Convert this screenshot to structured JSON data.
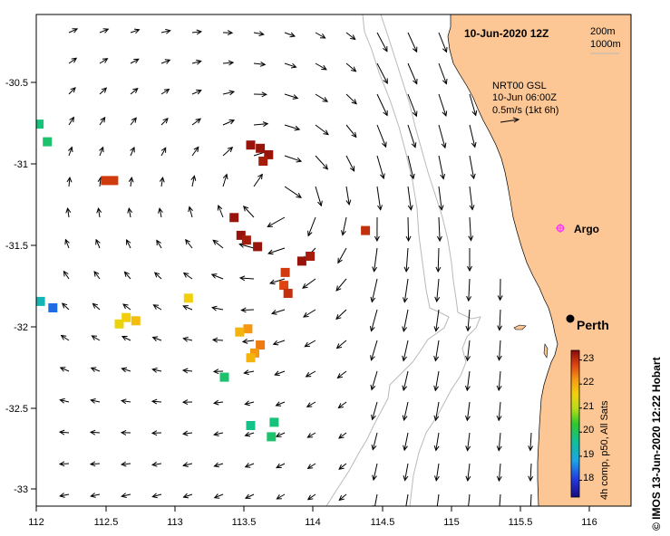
{
  "title": "10-Jun-2020 12Z",
  "depth_legend": [
    "200m",
    "1000m"
  ],
  "current_info": [
    "NRT00 GSL",
    "10-Jun 06:00Z",
    "0.5m/s (1kt 6h)"
  ],
  "places": {
    "argo": "Argo",
    "perth": "Perth"
  },
  "colorbar": {
    "label": "4h comp, p50, All Sats",
    "ticks": [
      "18",
      "19",
      "20",
      "21",
      "22",
      "23"
    ],
    "vmin": 17.3,
    "vmax": 23.4
  },
  "credit": "© IMOS 13-Jun-2020 12:22 Hobart",
  "axes": {
    "x_ticks": [
      "112",
      "112.5",
      "113",
      "113.5",
      "114",
      "114.5",
      "115",
      "115.5",
      "116"
    ],
    "y_ticks": [
      "-30.5",
      "-31",
      "-31.5",
      "-32",
      "-32.5",
      "-33"
    ],
    "lon_range": [
      112,
      116.3
    ],
    "lat_range": [
      -33.1,
      -30.05
    ]
  },
  "colors": {
    "land": "#fcc795",
    "isobath": "#b9b9b9",
    "argo": "#ff33ff"
  },
  "sst_patches": [
    {
      "lon": 112.02,
      "lat": -30.73,
      "t": 19.8
    },
    {
      "lon": 112.08,
      "lat": -30.84,
      "t": 19.9
    },
    {
      "lon": 112.03,
      "lat": -31.83,
      "t": 19.3
    },
    {
      "lon": 112.12,
      "lat": -31.87,
      "t": 18.4
    },
    {
      "lon": 112.5,
      "lat": -31.08,
      "t": 22.9
    },
    {
      "lon": 112.56,
      "lat": -31.08,
      "t": 22.9
    },
    {
      "lon": 112.65,
      "lat": -31.93,
      "t": 21.6
    },
    {
      "lon": 112.72,
      "lat": -31.95,
      "t": 21.8
    },
    {
      "lon": 112.6,
      "lat": -31.97,
      "t": 21.5
    },
    {
      "lon": 113.1,
      "lat": -31.81,
      "t": 21.6
    },
    {
      "lon": 113.53,
      "lat": -32.0,
      "t": 22.2
    },
    {
      "lon": 113.47,
      "lat": -32.02,
      "t": 21.9
    },
    {
      "lon": 113.62,
      "lat": -32.1,
      "t": 22.4
    },
    {
      "lon": 113.58,
      "lat": -32.15,
      "t": 22.2
    },
    {
      "lon": 113.55,
      "lat": -32.18,
      "t": 21.9
    },
    {
      "lon": 113.36,
      "lat": -32.3,
      "t": 19.9
    },
    {
      "lon": 113.55,
      "lat": -30.86,
      "t": 23.3
    },
    {
      "lon": 113.62,
      "lat": -30.88,
      "t": 23.3
    },
    {
      "lon": 113.68,
      "lat": -30.92,
      "t": 23.3
    },
    {
      "lon": 113.64,
      "lat": -30.96,
      "t": 23.2
    },
    {
      "lon": 113.43,
      "lat": -31.31,
      "t": 23.3
    },
    {
      "lon": 113.48,
      "lat": -31.42,
      "t": 23.3
    },
    {
      "lon": 113.52,
      "lat": -31.45,
      "t": 23.2
    },
    {
      "lon": 113.6,
      "lat": -31.49,
      "t": 23.3
    },
    {
      "lon": 113.8,
      "lat": -31.65,
      "t": 22.9
    },
    {
      "lon": 113.79,
      "lat": -31.73,
      "t": 22.8
    },
    {
      "lon": 113.82,
      "lat": -31.78,
      "t": 23.0
    },
    {
      "lon": 113.92,
      "lat": -31.58,
      "t": 23.3
    },
    {
      "lon": 113.98,
      "lat": -31.55,
      "t": 23.2
    },
    {
      "lon": 114.38,
      "lat": -31.39,
      "t": 23.0
    },
    {
      "lon": 113.55,
      "lat": -32.6,
      "t": 19.7
    },
    {
      "lon": 113.72,
      "lat": -32.58,
      "t": 19.8
    },
    {
      "lon": 113.7,
      "lat": -32.67,
      "t": 19.9
    }
  ]
}
